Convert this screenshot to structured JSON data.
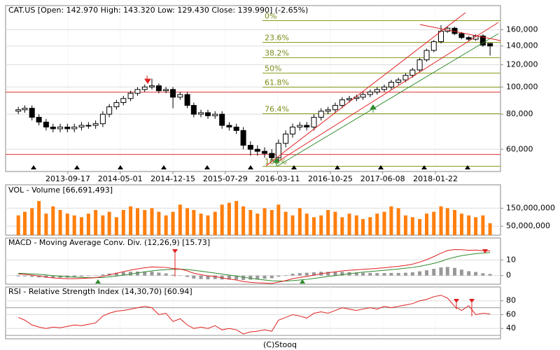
{
  "copyright": "(C)Stooq",
  "chart_data": [
    {
      "type": "candlestick",
      "title": "CAT.US [Open: 142.970  High: 143.320  Low: 129.430  Close: 139.990] (-2.65%)",
      "x": [
        "2013-02-15",
        "2013-03-15",
        "2013-04-15",
        "2013-05-15",
        "2013-06-15",
        "2013-07-15",
        "2013-08-15",
        "2013-09-15",
        "2013-10-15",
        "2013-11-15",
        "2013-12-15",
        "2014-01-15",
        "2014-02-15",
        "2014-03-15",
        "2014-04-15",
        "2014-05-15",
        "2014-06-15",
        "2014-07-15",
        "2014-08-15",
        "2014-09-15",
        "2014-10-15",
        "2014-11-15",
        "2014-12-15",
        "2015-01-15",
        "2015-02-15",
        "2015-03-15",
        "2015-04-15",
        "2015-05-15",
        "2015-06-15",
        "2015-07-15",
        "2015-08-15",
        "2015-09-15",
        "2015-10-15",
        "2015-11-15",
        "2015-12-15",
        "2016-01-15",
        "2016-02-15",
        "2016-03-15",
        "2016-04-15",
        "2016-05-15",
        "2016-06-15",
        "2016-07-15",
        "2016-08-15",
        "2016-09-15",
        "2016-10-15",
        "2016-11-15",
        "2016-12-15",
        "2017-01-15",
        "2017-02-15",
        "2017-03-15",
        "2017-04-15",
        "2017-05-15",
        "2017-06-15",
        "2017-07-15",
        "2017-08-15",
        "2017-09-15",
        "2017-10-15",
        "2017-11-15",
        "2017-12-15",
        "2018-01-15",
        "2018-02-15",
        "2018-03-15",
        "2018-04-15",
        "2018-05-15",
        "2018-06-15",
        "2018-07-15",
        "2018-08-15",
        "2018-09-15"
      ],
      "open": [
        82,
        83,
        84,
        78,
        75,
        72,
        71,
        72,
        71,
        72,
        73,
        73,
        74,
        80,
        85,
        88,
        91,
        95,
        98,
        100,
        101,
        97,
        98,
        92,
        94,
        86,
        80,
        81,
        79,
        80,
        73,
        72,
        70,
        62,
        60,
        59,
        58,
        56,
        63,
        68,
        72,
        73,
        72,
        78,
        82,
        83,
        86,
        90,
        91,
        92,
        94,
        96,
        98,
        100,
        104,
        106,
        110,
        115,
        125,
        135,
        145,
        158,
        162,
        155,
        150,
        148,
        152,
        142.97
      ],
      "high": [
        85,
        86,
        86,
        80,
        77,
        74,
        74,
        74,
        74,
        75,
        75,
        76,
        82,
        87,
        90,
        93,
        97,
        100,
        102,
        107,
        103,
        100,
        100,
        96,
        96,
        88,
        83,
        83,
        82,
        82,
        75,
        74,
        72,
        64,
        62,
        61,
        60,
        65,
        70,
        74,
        75,
        75,
        80,
        84,
        85,
        88,
        92,
        93,
        94,
        96,
        98,
        100,
        102,
        106,
        108,
        112,
        117,
        127,
        137,
        147,
        166,
        164,
        164,
        157,
        152,
        154,
        154,
        143.32
      ],
      "low": [
        80,
        81,
        76,
        73,
        70,
        69,
        69,
        69,
        69,
        70,
        71,
        71,
        72,
        78,
        83,
        86,
        89,
        93,
        96,
        98,
        95,
        95,
        84,
        90,
        84,
        78,
        78,
        77,
        77,
        71,
        70,
        68,
        60,
        57,
        57,
        56,
        54,
        54,
        61,
        66,
        70,
        70,
        70,
        76,
        80,
        81,
        84,
        88,
        89,
        90,
        92,
        94,
        96,
        98,
        102,
        104,
        108,
        113,
        123,
        133,
        143,
        156,
        153,
        148,
        146,
        146,
        139,
        129.43
      ],
      "close": [
        83,
        84,
        78,
        75,
        72,
        71,
        72,
        71,
        72,
        73,
        73,
        74,
        80,
        85,
        88,
        91,
        95,
        98,
        100,
        101,
        97,
        98,
        92,
        94,
        86,
        80,
        81,
        79,
        80,
        73,
        72,
        70,
        62,
        60,
        59,
        58,
        56,
        63,
        68,
        72,
        73,
        72,
        78,
        82,
        83,
        86,
        90,
        91,
        92,
        94,
        96,
        98,
        100,
        104,
        106,
        110,
        115,
        125,
        135,
        145,
        158,
        162,
        155,
        150,
        148,
        152,
        141,
        139.99
      ],
      "up_color": "#ffffff",
      "down_color": "#000000",
      "xlim": [
        "2012-12-22",
        "2018-10-30"
      ],
      "xticks": [
        "2013-09-17",
        "2014-05-01",
        "2014-12-15",
        "2015-07-29",
        "2016-03-11",
        "2016-10-25",
        "2017-06-08",
        "2018-01-22"
      ],
      "log_scale": true,
      "ylim": [
        50,
        195
      ],
      "yticks": [
        {
          "value": 160,
          "label": "160,000"
        },
        {
          "value": 140,
          "label": "140,000"
        },
        {
          "value": 120,
          "label": "120,000"
        },
        {
          "value": 100,
          "label": "100,000"
        },
        {
          "value": 80,
          "label": "80,000"
        },
        {
          "value": 60,
          "label": "60,000"
        }
      ],
      "fibonacci": [
        {
          "label": "0%",
          "value": 172.3
        },
        {
          "label": "23.6%",
          "value": 144.2
        },
        {
          "label": "38.2%",
          "value": 127.2
        },
        {
          "label": "50%",
          "value": 112.1
        },
        {
          "label": "61.8%",
          "value": 99.9
        },
        {
          "label": "76.4%",
          "value": 80.3
        },
        {
          "label": "100%",
          "value": 52.2
        }
      ],
      "fib_color": "#8a9a1a",
      "levels": [
        95.9,
        57.5
      ],
      "level_color": "#e03030"
    },
    {
      "type": "bar",
      "title": "VOL - Volume [66,691,493]",
      "values": [
        110000000,
        130000000,
        150000000,
        190000000,
        120000000,
        160000000,
        140000000,
        120000000,
        110000000,
        100000000,
        120000000,
        140000000,
        110000000,
        130000000,
        100000000,
        140000000,
        160000000,
        150000000,
        140000000,
        150000000,
        130000000,
        110000000,
        130000000,
        170000000,
        150000000,
        140000000,
        120000000,
        110000000,
        130000000,
        170000000,
        180000000,
        190000000,
        160000000,
        140000000,
        120000000,
        150000000,
        140000000,
        170000000,
        130000000,
        110000000,
        150000000,
        120000000,
        100000000,
        110000000,
        140000000,
        130000000,
        100000000,
        120000000,
        110000000,
        90000000,
        100000000,
        120000000,
        130000000,
        160000000,
        150000000,
        110000000,
        100000000,
        90000000,
        120000000,
        130000000,
        160000000,
        150000000,
        140000000,
        120000000,
        110000000,
        100000000,
        110000000,
        66691493
      ],
      "color": "#ff7f0e",
      "ylim": [
        0,
        280000000
      ],
      "yticks": [
        {
          "value": 150000000,
          "label": "150,000,000"
        },
        {
          "value": 50000000,
          "label": "50,000,000"
        }
      ]
    },
    {
      "type": "macd",
      "title": "MACD - Moving Average Conv. Div. (12,26,9) [15.73]",
      "series": [
        {
          "kind": "bar",
          "color": "#999999",
          "values": [
            -0.5,
            -0.5,
            -0.8,
            -1.1,
            -1.4,
            -1.5,
            -1.4,
            -1.3,
            -1,
            -0.6,
            -0.3,
            0,
            0.7,
            1.3,
            1.8,
            2.2,
            2.5,
            2.6,
            2.6,
            2.5,
            1.9,
            1.4,
            0.5,
            0.1,
            -0.9,
            -1.9,
            -2.2,
            -2.4,
            -2.2,
            -2.5,
            -2.5,
            -2.5,
            -2.8,
            -2.6,
            -2.3,
            -2,
            -1.7,
            -0.7,
            0.3,
            1.2,
            1.6,
            1.8,
            2.1,
            2.4,
            2.4,
            2.4,
            2.4,
            2.2,
            2,
            1.8,
            1.7,
            1.6,
            1.6,
            1.7,
            1.7,
            1.8,
            2.1,
            2.7,
            3.4,
            4.3,
            5.2,
            5.5,
            4.9,
            3.8,
            2.8,
            2.3,
            1.5,
            1.03
          ]
        },
        {
          "kind": "line",
          "color": "#2e8b2e",
          "values": [
            1.5,
            1.3,
            1.1,
            0.8,
            0.4,
            0,
            -0.4,
            -0.7,
            -1,
            -1.2,
            -1.3,
            -1.3,
            -1.2,
            -0.8,
            -0.3,
            0.3,
            1,
            1.7,
            2.4,
            3,
            3.5,
            3.8,
            4,
            4.1,
            3.9,
            3.4,
            2.8,
            2.2,
            1.6,
            1,
            0.3,
            -0.3,
            -1,
            -1.7,
            -2.3,
            -2.8,
            -3.3,
            -3.5,
            -3.5,
            -3.2,
            -2.8,
            -2.4,
            -1.8,
            -1.2,
            -0.6,
            0,
            0.6,
            1.2,
            1.7,
            2.2,
            2.6,
            3,
            3.4,
            3.8,
            4.2,
            4.7,
            5.2,
            5.9,
            6.8,
            7.8,
            9.1,
            10.5,
            11.7,
            12.7,
            13.4,
            14,
            14.4,
            14.7
          ]
        },
        {
          "kind": "line",
          "color": "#e02020",
          "values": [
            1,
            0.8,
            0.3,
            -0.3,
            -1,
            -1.5,
            -1.8,
            -2,
            -2,
            -1.8,
            -1.6,
            -1.3,
            -0.5,
            0.5,
            1.5,
            2.5,
            3.5,
            4.3,
            5,
            5.5,
            5.4,
            5.2,
            4.5,
            4.2,
            3,
            1.5,
            0.6,
            -0.2,
            -0.6,
            -1.5,
            -2.2,
            -2.8,
            -3.8,
            -4.3,
            -4.6,
            -4.8,
            -5,
            -4.2,
            -3.2,
            -2,
            -1.2,
            -0.6,
            0.3,
            1.2,
            1.8,
            2.4,
            3,
            3.4,
            3.7,
            4,
            4.3,
            4.6,
            5,
            5.5,
            5.9,
            6.5,
            7.3,
            8.6,
            10.2,
            12.1,
            14.3,
            16,
            16.6,
            16.5,
            16.2,
            16.3,
            15.9,
            15.73
          ]
        }
      ],
      "ylim": [
        -5.5,
        24
      ],
      "yticks": [
        10,
        0
      ]
    },
    {
      "type": "line",
      "title": "RSI - Relative Strength Index (14,30,70) [60.94]",
      "values": [
        56,
        52,
        45,
        42,
        40,
        42,
        41,
        43,
        45,
        44,
        46,
        48,
        58,
        62,
        65,
        66,
        68,
        70,
        72,
        70,
        60,
        62,
        50,
        54,
        45,
        40,
        42,
        40,
        44,
        38,
        40,
        38,
        32,
        35,
        36,
        38,
        36,
        52,
        56,
        60,
        58,
        55,
        62,
        64,
        62,
        66,
        70,
        68,
        66,
        68,
        70,
        68,
        72,
        70,
        72,
        74,
        76,
        80,
        82,
        86,
        88,
        84,
        72,
        66,
        73,
        60,
        62,
        60.94
      ],
      "color": "#e02020",
      "levels": [
        70,
        30
      ],
      "ylim": [
        25,
        100
      ],
      "yticks": [
        80,
        60,
        40
      ]
    }
  ]
}
